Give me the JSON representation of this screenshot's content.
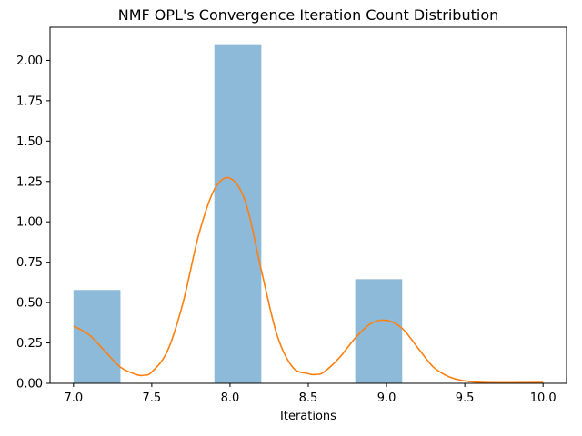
{
  "chart_data": {
    "type": "bar",
    "title": "NMF OPL's Convergence Iteration Count Distribution",
    "xlabel": "Iterations",
    "ylabel": "",
    "xlim": [
      6.85,
      10.15
    ],
    "ylim": [
      0,
      2.205
    ],
    "xticks": [
      7.0,
      7.5,
      8.0,
      8.5,
      9.0,
      9.5,
      10.0
    ],
    "xtick_labels": [
      "7.0",
      "7.5",
      "8.0",
      "8.5",
      "9.0",
      "9.5",
      "10.0"
    ],
    "yticks": [
      0,
      0.25,
      0.5,
      0.75,
      1.0,
      1.25,
      1.5,
      1.75,
      2.0
    ],
    "ytick_labels": [
      "0.00",
      "0.25",
      "0.50",
      "0.75",
      "1.00",
      "1.25",
      "1.50",
      "1.75",
      "2.00"
    ],
    "grid": false,
    "series": [
      {
        "kind": "histogram",
        "color": "#8dbad9",
        "bins": [
          {
            "x0": 7.0,
            "x1": 7.3,
            "value": 0.578
          },
          {
            "x0": 7.9,
            "x1": 8.2,
            "value": 2.1
          },
          {
            "x0": 8.8,
            "x1": 9.1,
            "value": 0.645
          }
        ]
      },
      {
        "kind": "line",
        "color": "#ff7f0e",
        "x": [
          7.0,
          7.1,
          7.2,
          7.3,
          7.4,
          7.45,
          7.5,
          7.6,
          7.7,
          7.8,
          7.9,
          8.0,
          8.1,
          8.2,
          8.3,
          8.4,
          8.5,
          8.55,
          8.6,
          8.7,
          8.8,
          8.9,
          9.0,
          9.1,
          9.2,
          9.3,
          9.4,
          9.5,
          9.6,
          9.7,
          9.8,
          10.0
        ],
        "y": [
          0.355,
          0.3,
          0.2,
          0.1,
          0.055,
          0.05,
          0.07,
          0.2,
          0.5,
          0.92,
          1.2,
          1.27,
          1.12,
          0.7,
          0.3,
          0.1,
          0.06,
          0.055,
          0.07,
          0.16,
          0.28,
          0.37,
          0.39,
          0.34,
          0.22,
          0.1,
          0.04,
          0.015,
          0.006,
          0.004,
          0.004,
          0.005
        ]
      }
    ]
  }
}
